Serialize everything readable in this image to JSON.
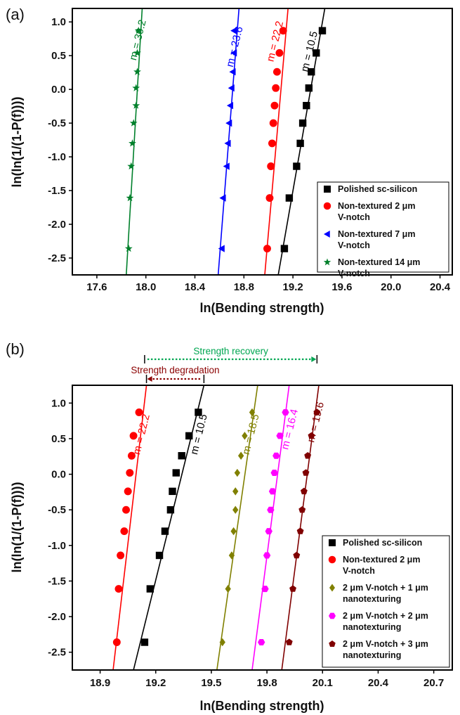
{
  "chart_data": [
    {
      "panel": "(a)",
      "type": "scatter",
      "xlabel": "ln(Bending strength)",
      "ylabel": "ln(ln(1/(1-P(f))))",
      "xlim": [
        17.4,
        20.5
      ],
      "ylim": [
        -2.75,
        1.2
      ],
      "xticks": [
        "17.6",
        "18.0",
        "18.4",
        "18.8",
        "19.2",
        "19.6",
        "20.0",
        "20.4"
      ],
      "yticks": [
        "1.0",
        "0.5",
        "0.0",
        "-0.5",
        "-1.0",
        "-1.5",
        "-2.0",
        "-2.5"
      ],
      "legend_position": "bottom-right",
      "series": [
        {
          "name": "Polished sc-silicon",
          "color": "#000000",
          "marker": "square",
          "m_label": "m = 10.5",
          "m_pos": [
            19.36,
            0.55
          ],
          "line": [
            [
              19.08,
              -2.75
            ],
            [
              19.46,
              1.2
            ]
          ],
          "points": [
            [
              19.13,
              -2.36
            ],
            [
              19.17,
              -1.61
            ],
            [
              19.23,
              -1.14
            ],
            [
              19.26,
              -0.8
            ],
            [
              19.28,
              -0.5
            ],
            [
              19.31,
              -0.24
            ],
            [
              19.33,
              0.02
            ],
            [
              19.35,
              0.26
            ],
            [
              19.39,
              0.54
            ],
            [
              19.44,
              0.87
            ]
          ]
        },
        {
          "name": "Non-textured 2 μm V-notch",
          "color": "#ff0000",
          "marker": "circle",
          "m_label": "m = 22.2",
          "m_pos": [
            19.08,
            0.7
          ],
          "line": [
            [
              18.97,
              -2.75
            ],
            [
              19.16,
              1.2
            ]
          ],
          "points": [
            [
              18.99,
              -2.36
            ],
            [
              19.01,
              -1.61
            ],
            [
              19.02,
              -1.14
            ],
            [
              19.03,
              -0.8
            ],
            [
              19.04,
              -0.5
            ],
            [
              19.05,
              -0.24
            ],
            [
              19.06,
              0.02
            ],
            [
              19.07,
              0.26
            ],
            [
              19.09,
              0.54
            ],
            [
              19.12,
              0.87
            ]
          ]
        },
        {
          "name": "Non-textured 7 μm V-notch",
          "color": "#0000ff",
          "marker": "triangle-left",
          "m_label": "m = 23.6",
          "m_pos": [
            18.75,
            0.62
          ],
          "line": [
            [
              18.59,
              -2.75
            ],
            [
              18.76,
              1.2
            ]
          ],
          "points": [
            [
              18.62,
              -2.36
            ],
            [
              18.63,
              -1.61
            ],
            [
              18.66,
              -1.14
            ],
            [
              18.67,
              -0.8
            ],
            [
              18.68,
              -0.5
            ],
            [
              18.69,
              -0.24
            ],
            [
              18.7,
              0.02
            ],
            [
              18.71,
              0.26
            ],
            [
              18.72,
              0.54
            ],
            [
              18.72,
              0.87
            ]
          ]
        },
        {
          "name": "Non-textured 14 μm V-notch",
          "color": "#00802b",
          "marker": "star",
          "m_label": "m = 30.2",
          "m_pos": [
            17.96,
            0.72
          ],
          "line": [
            [
              17.84,
              -2.75
            ],
            [
              17.97,
              1.2
            ]
          ],
          "points": [
            [
              17.86,
              -2.36
            ],
            [
              17.87,
              -1.61
            ],
            [
              17.88,
              -1.14
            ],
            [
              17.89,
              -0.8
            ],
            [
              17.9,
              -0.5
            ],
            [
              17.92,
              -0.24
            ],
            [
              17.92,
              0.02
            ],
            [
              17.93,
              0.26
            ],
            [
              17.93,
              0.54
            ],
            [
              17.94,
              0.87
            ]
          ]
        }
      ]
    },
    {
      "panel": "(b)",
      "type": "scatter",
      "xlabel": "ln(Bending strength)",
      "ylabel": "ln(ln(1/(1-P(f))))",
      "xlim": [
        18.75,
        20.8
      ],
      "ylim": [
        -2.75,
        1.25
      ],
      "xticks": [
        "18.9",
        "19.2",
        "19.5",
        "19.8",
        "20.1",
        "20.4",
        "20.7"
      ],
      "yticks": [
        "1.0",
        "0.5",
        "0.0",
        "-0.5",
        "-1.0",
        "-1.5",
        "-2.0",
        "-2.5"
      ],
      "legend_position": "bottom-right",
      "series": [
        {
          "name": "Polished sc-silicon",
          "color": "#000000",
          "marker": "square",
          "m_label": "m = 10.5",
          "m_pos": [
            19.45,
            0.55
          ],
          "line": [
            [
              19.08,
              -2.75
            ],
            [
              19.46,
              1.25
            ]
          ],
          "points": [
            [
              19.14,
              -2.36
            ],
            [
              19.17,
              -1.61
            ],
            [
              19.22,
              -1.14
            ],
            [
              19.25,
              -0.8
            ],
            [
              19.28,
              -0.5
            ],
            [
              19.29,
              -0.24
            ],
            [
              19.31,
              0.02
            ],
            [
              19.34,
              0.26
            ],
            [
              19.38,
              0.54
            ],
            [
              19.43,
              0.87
            ]
          ]
        },
        {
          "name": "Non-textured 2 μm V-notch",
          "color": "#ff0000",
          "marker": "circle",
          "m_label": "m = 22.2",
          "m_pos": [
            19.14,
            0.55
          ],
          "line": [
            [
              18.97,
              -2.75
            ],
            [
              19.15,
              1.25
            ]
          ],
          "points": [
            [
              18.99,
              -2.36
            ],
            [
              19.0,
              -1.61
            ],
            [
              19.01,
              -1.14
            ],
            [
              19.03,
              -0.8
            ],
            [
              19.04,
              -0.5
            ],
            [
              19.05,
              -0.24
            ],
            [
              19.06,
              0.02
            ],
            [
              19.07,
              0.26
            ],
            [
              19.08,
              0.54
            ],
            [
              19.11,
              0.87
            ]
          ]
        },
        {
          "name": "2 μm V-notch + 1 μm nanotexturing",
          "color": "#808000",
          "marker": "diamond",
          "m_label": "m = 18.5",
          "m_pos": [
            19.73,
            0.55
          ],
          "line": [
            [
              19.53,
              -2.75
            ],
            [
              19.75,
              1.25
            ]
          ],
          "points": [
            [
              19.56,
              -2.36
            ],
            [
              19.59,
              -1.61
            ],
            [
              19.61,
              -1.14
            ],
            [
              19.62,
              -0.8
            ],
            [
              19.63,
              -0.5
            ],
            [
              19.63,
              -0.24
            ],
            [
              19.64,
              0.02
            ],
            [
              19.66,
              0.26
            ],
            [
              19.68,
              0.54
            ],
            [
              19.72,
              0.87
            ]
          ]
        },
        {
          "name": "2 μm V-notch + 2 μm nanotexturing",
          "color": "#ff00ff",
          "marker": "hexagon",
          "m_label": "m = 16.4",
          "m_pos": [
            19.94,
            0.62
          ],
          "line": [
            [
              19.72,
              -2.75
            ],
            [
              19.92,
              1.25
            ]
          ],
          "points": [
            [
              19.77,
              -2.36
            ],
            [
              19.79,
              -1.61
            ],
            [
              19.8,
              -1.14
            ],
            [
              19.81,
              -0.8
            ],
            [
              19.82,
              -0.5
            ],
            [
              19.83,
              -0.24
            ],
            [
              19.84,
              0.02
            ],
            [
              19.85,
              0.26
            ],
            [
              19.87,
              0.54
            ],
            [
              19.9,
              0.87
            ]
          ]
        },
        {
          "name": "2 μm V-notch + 3 μm nanotexturing",
          "color": "#800000",
          "marker": "pentagon",
          "m_label": "m = 19.6",
          "m_pos": [
            20.08,
            0.72
          ],
          "line": [
            [
              19.88,
              -2.75
            ],
            [
              20.08,
              1.25
            ]
          ],
          "points": [
            [
              19.92,
              -2.36
            ],
            [
              19.94,
              -1.61
            ],
            [
              19.96,
              -1.14
            ],
            [
              19.98,
              -0.8
            ],
            [
              19.99,
              -0.5
            ],
            [
              20.0,
              -0.24
            ],
            [
              20.01,
              0.02
            ],
            [
              20.02,
              0.26
            ],
            [
              20.04,
              0.54
            ],
            [
              20.07,
              0.87
            ]
          ]
        }
      ],
      "annotations": [
        {
          "text": "Strength recovery",
          "color": "#00a651",
          "x_from": 19.14,
          "x_to": 20.07
        },
        {
          "text": "Strength degradation",
          "color": "#8b0000",
          "x_from": 19.15,
          "x_to": 19.46
        }
      ]
    }
  ]
}
